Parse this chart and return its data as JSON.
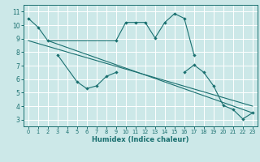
{
  "xlabel": "Humidex (Indice chaleur)",
  "bg_color": "#cce8e8",
  "grid_color": "#ffffff",
  "line_color": "#1a7070",
  "xlim": [
    -0.5,
    23.5
  ],
  "ylim": [
    2.5,
    11.5
  ],
  "xticks": [
    0,
    1,
    2,
    3,
    4,
    5,
    6,
    7,
    8,
    9,
    10,
    11,
    12,
    13,
    14,
    15,
    16,
    17,
    18,
    19,
    20,
    21,
    22,
    23
  ],
  "yticks": [
    3,
    4,
    5,
    6,
    7,
    8,
    9,
    10,
    11
  ],
  "curve1_x": [
    0,
    1,
    2,
    9,
    10,
    11,
    12,
    13,
    14,
    15,
    16,
    17
  ],
  "curve1_y": [
    10.5,
    9.85,
    8.85,
    8.85,
    10.2,
    10.2,
    10.2,
    9.05,
    10.2,
    10.85,
    10.5,
    7.8
  ],
  "curve2_x": [
    3,
    5,
    6,
    7,
    8,
    9
  ],
  "curve2_y": [
    7.8,
    5.8,
    5.3,
    5.5,
    6.2,
    6.5
  ],
  "curve3_x": [
    16,
    17,
    18,
    19,
    20,
    21,
    22,
    23
  ],
  "curve3_y": [
    6.5,
    7.05,
    6.5,
    5.5,
    4.05,
    3.75,
    3.05,
    3.5
  ],
  "line1_x": [
    0,
    23
  ],
  "line1_y": [
    8.85,
    4.0
  ],
  "line2_x": [
    2,
    23
  ],
  "line2_y": [
    8.85,
    3.5
  ]
}
